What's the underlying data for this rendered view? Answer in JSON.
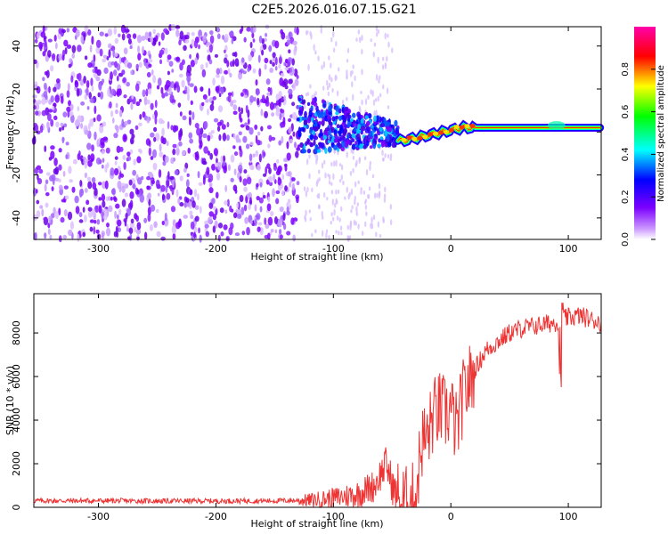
{
  "title": "C2E5.2026.016.07.15.G21",
  "chart_data": [
    {
      "type": "heatmap",
      "xlabel": "Height of straight line (km)",
      "ylabel": "Frequency (Hz)",
      "xlim": [
        -355,
        128
      ],
      "ylim": [
        -50,
        49
      ],
      "xticks": [
        -300,
        -200,
        -100,
        0,
        100
      ],
      "yticks": [
        -40,
        -20,
        0,
        20,
        40
      ],
      "colorbar": {
        "label": "Normalized spectral amplitude",
        "range": [
          0.0,
          1.0
        ],
        "ticks": [
          0.0,
          0.2,
          0.4,
          0.6,
          0.8
        ],
        "colors": [
          "#ffffff",
          "#7b00ff",
          "#0000ff",
          "#00ffff",
          "#00ff00",
          "#ffff00",
          "#ff0000",
          "#ff00aa"
        ]
      },
      "regions": [
        {
          "name": "noise",
          "x_range": [
            -355,
            -130
          ],
          "freq_range": [
            -50,
            49
          ],
          "level": 0.15
        },
        {
          "name": "transition",
          "x_range": [
            -130,
            -45
          ],
          "freq_range": [
            -10,
            15
          ],
          "level": 0.3
        },
        {
          "name": "signal",
          "x_range": [
            -45,
            128
          ],
          "freq_center": [
            -4,
            2
          ],
          "level": 0.85
        }
      ]
    },
    {
      "type": "line",
      "xlabel": "Height of straight line (km)",
      "ylabel": "SNR (10 * v/v)",
      "xlim": [
        -355,
        128
      ],
      "ylim": [
        0,
        9800
      ],
      "xticks": [
        -300,
        -200,
        -100,
        0,
        100
      ],
      "yticks": [
        0,
        2000,
        4000,
        6000,
        8000
      ],
      "color": "#ee3333",
      "series": [
        {
          "name": "SNR",
          "x": [
            -355,
            -300,
            -250,
            -200,
            -150,
            -120,
            -100,
            -80,
            -65,
            -55,
            -48,
            -42,
            -35,
            -30,
            -25,
            -20,
            -15,
            -10,
            -5,
            0,
            5,
            10,
            20,
            30,
            40,
            50,
            60,
            70,
            80,
            90,
            95,
            100,
            110,
            120,
            128
          ],
          "y": [
            300,
            300,
            290,
            290,
            300,
            320,
            420,
            600,
            1000,
            2000,
            700,
            200,
            150,
            500,
            3000,
            3200,
            4200,
            4500,
            4300,
            4500,
            3500,
            5000,
            6300,
            7200,
            7600,
            8000,
            8200,
            8300,
            8400,
            8500,
            8600,
            8700,
            8800,
            8600,
            8500
          ]
        }
      ]
    }
  ]
}
